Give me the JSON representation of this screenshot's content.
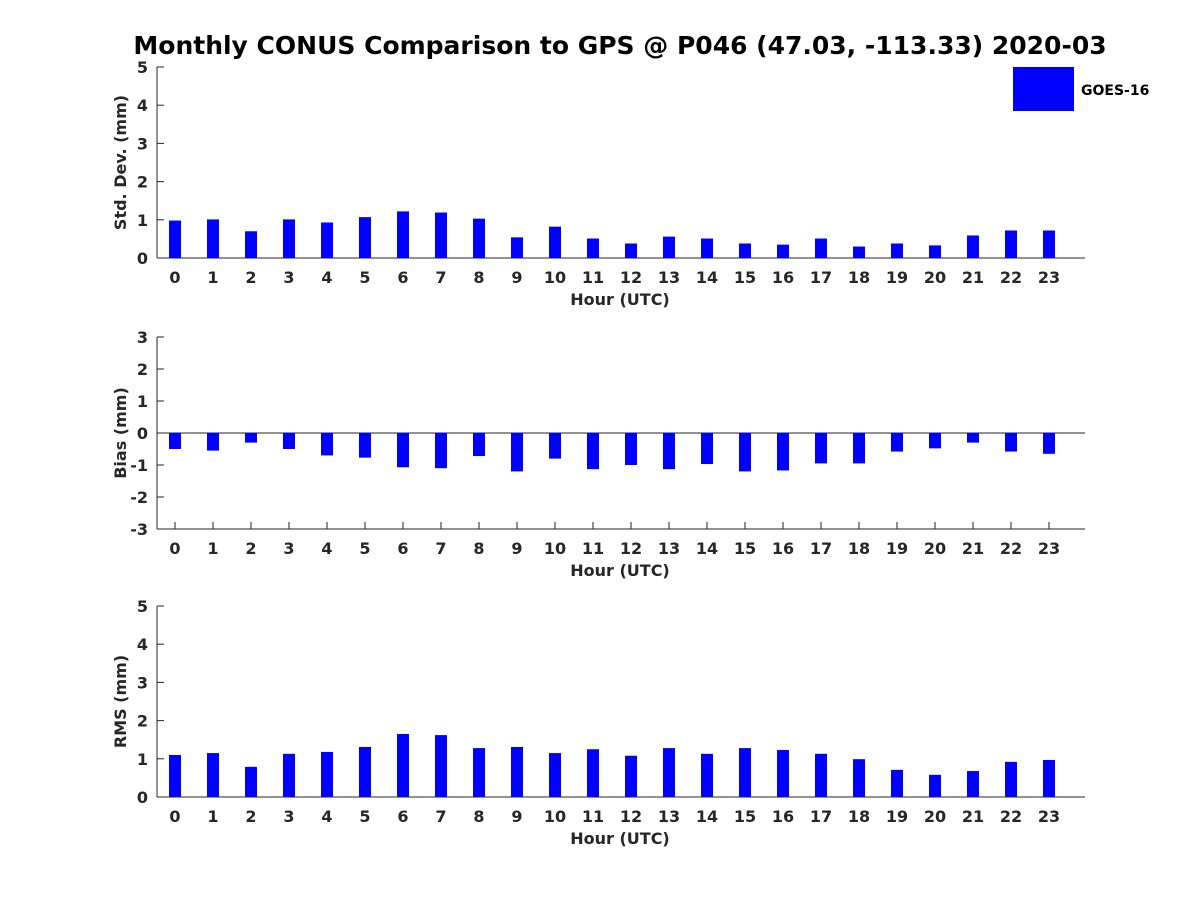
{
  "title": "Monthly CONUS Comparison to GPS @ P046 (47.03, -113.33) 2020-03",
  "legend": {
    "label": "GOES-16",
    "color": "#0000ff",
    "placement": "top-right"
  },
  "chart_data": [
    {
      "type": "bar",
      "xlabel": "Hour (UTC)",
      "ylabel": "Std. Dev. (mm)",
      "ylim": [
        0,
        5
      ],
      "yticks": [
        "0",
        "1",
        "2",
        "3",
        "4",
        "5"
      ],
      "categories": [
        "0",
        "1",
        "2",
        "3",
        "4",
        "5",
        "6",
        "7",
        "8",
        "9",
        "10",
        "11",
        "12",
        "13",
        "14",
        "15",
        "16",
        "17",
        "18",
        "19",
        "20",
        "21",
        "22",
        "23"
      ],
      "series": [
        {
          "name": "GOES-16",
          "color": "#0000ff",
          "values": [
            0.98,
            1.01,
            0.7,
            1.01,
            0.93,
            1.07,
            1.22,
            1.19,
            1.03,
            0.54,
            0.82,
            0.51,
            0.38,
            0.56,
            0.51,
            0.38,
            0.35,
            0.51,
            0.3,
            0.38,
            0.33,
            0.59,
            0.72,
            0.72
          ]
        }
      ]
    },
    {
      "type": "bar",
      "xlabel": "Hour (UTC)",
      "ylabel": "Bias (mm)",
      "ylim": [
        -3,
        3
      ],
      "yticks": [
        "-3",
        "-2",
        "-1",
        "0",
        "1",
        "2",
        "3"
      ],
      "zero_line": true,
      "categories": [
        "0",
        "1",
        "2",
        "3",
        "4",
        "5",
        "6",
        "7",
        "8",
        "9",
        "10",
        "11",
        "12",
        "13",
        "14",
        "15",
        "16",
        "17",
        "18",
        "19",
        "20",
        "21",
        "22",
        "23"
      ],
      "series": [
        {
          "name": "GOES-16",
          "color": "#0000ff",
          "values": [
            -0.5,
            -0.55,
            -0.3,
            -0.5,
            -0.7,
            -0.77,
            -1.07,
            -1.1,
            -0.72,
            -1.2,
            -0.8,
            -1.13,
            -1.0,
            -1.13,
            -0.97,
            -1.2,
            -1.17,
            -0.95,
            -0.95,
            -0.58,
            -0.48,
            -0.3,
            -0.58,
            -0.65
          ]
        }
      ]
    },
    {
      "type": "bar",
      "xlabel": "Hour (UTC)",
      "ylabel": "RMS (mm)",
      "ylim": [
        0,
        5
      ],
      "yticks": [
        "0",
        "1",
        "2",
        "3",
        "4",
        "5"
      ],
      "categories": [
        "0",
        "1",
        "2",
        "3",
        "4",
        "5",
        "6",
        "7",
        "8",
        "9",
        "10",
        "11",
        "12",
        "13",
        "14",
        "15",
        "16",
        "17",
        "18",
        "19",
        "20",
        "21",
        "22",
        "23"
      ],
      "series": [
        {
          "name": "GOES-16",
          "color": "#0000ff",
          "values": [
            1.1,
            1.15,
            0.79,
            1.13,
            1.18,
            1.31,
            1.65,
            1.62,
            1.28,
            1.31,
            1.15,
            1.25,
            1.08,
            1.28,
            1.13,
            1.28,
            1.23,
            1.13,
            0.99,
            0.71,
            0.58,
            0.68,
            0.92,
            0.97
          ]
        }
      ]
    }
  ]
}
